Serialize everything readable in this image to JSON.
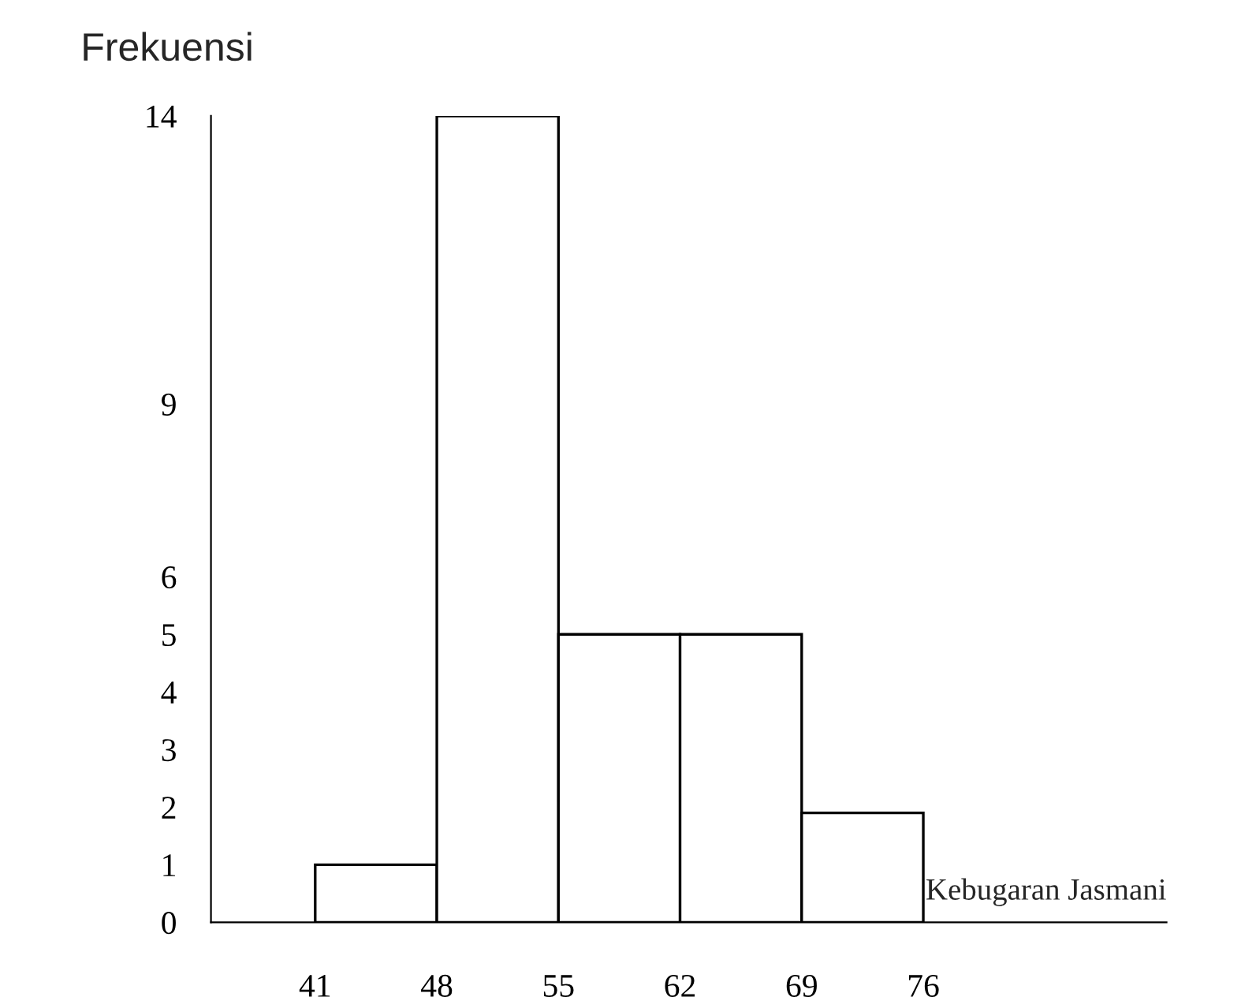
{
  "chart_data": {
    "type": "histogram",
    "ylabel": "Frekuensi",
    "xlabel": "Kebugaran Jasmani",
    "bins": [
      41,
      48,
      55,
      62,
      69,
      76
    ],
    "values": [
      1,
      14,
      5,
      5,
      1.9
    ],
    "color": "#ffffff",
    "xlim": [
      35,
      90
    ],
    "xticks": [
      41,
      48,
      55,
      62,
      69,
      76
    ],
    "ylim": [
      0,
      14
    ],
    "yticks": [
      0,
      1,
      2,
      3,
      4,
      5,
      6,
      9,
      14
    ],
    "grid": false
  }
}
